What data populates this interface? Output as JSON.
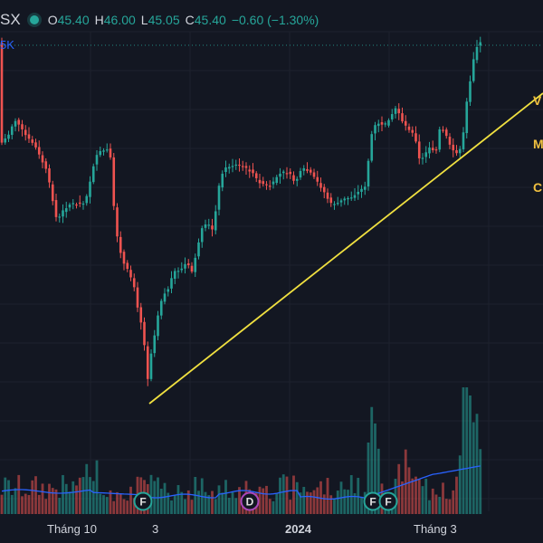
{
  "legend": {
    "symbol": "SX",
    "open_key": "O",
    "open": "45.40",
    "high_key": "H",
    "high": "46.00",
    "low_key": "L",
    "low": "45.05",
    "close_key": "C",
    "close": "45.40",
    "change": "−0.60 (−1.30%)"
  },
  "volume_label": "5K",
  "side_labels": {
    "first": "V",
    "second": "M",
    "third": "C"
  },
  "x_axis": {
    "oct": "Tháng 10",
    "three": "3",
    "year": "2024",
    "mar": "Tháng 3"
  },
  "markers": [
    {
      "name": "marker-f-1",
      "letter": "F",
      "color": "#26a69a"
    },
    {
      "name": "marker-d",
      "letter": "D",
      "color": "#ab47bc"
    },
    {
      "name": "marker-f-2",
      "letter": "F",
      "color": "#26a69a"
    },
    {
      "name": "marker-f-3",
      "letter": "F",
      "color": "#26a69a"
    }
  ],
  "colors": {
    "up": "#26a69a",
    "down": "#ef5350",
    "trendline": "#f0e040",
    "volume_ma": "#2962ff",
    "background": "#131722"
  }
}
